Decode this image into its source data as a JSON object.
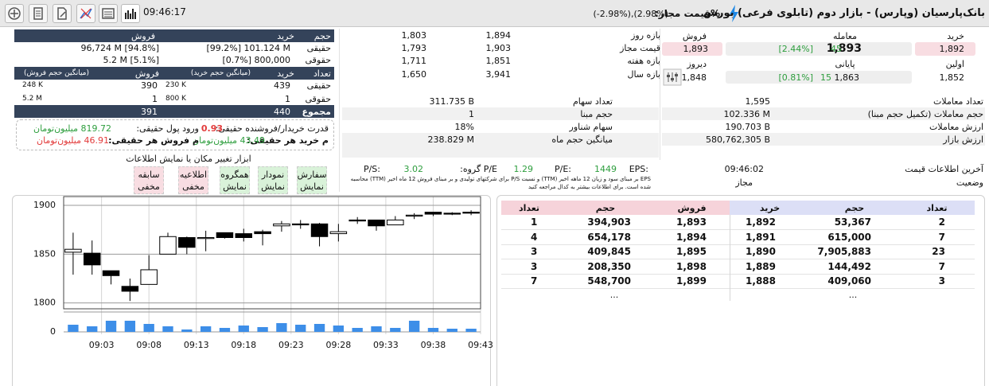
{
  "header": {
    "title": "بانک‌پارسیان (وپارس) - بازار دوم (تابلوی فرعی) بورس",
    "allowed_label": "%قیمت مجاز:",
    "allowed_range": "(-2.98%),(2.98%)",
    "time": "09:46:17"
  },
  "quote": {
    "buy_label": "خرید",
    "trade_label": "معامله",
    "sell_label": "فروش",
    "bid": "1,892",
    "last": "1,893",
    "last_change": "45",
    "last_percent": "[2.44%]",
    "ask": "1,893",
    "first_label": "اولین",
    "first": "1,852",
    "close_label": "پایانی",
    "close": "1,863",
    "close_change": "15",
    "close_percent": "[0.81%]",
    "prev_label": "دیروز",
    "prev": "1,848"
  },
  "ranges": [
    {
      "label": "بازه روز",
      "high": "1,894",
      "low": "1,803"
    },
    {
      "label": "قیمت مجاز",
      "high": "1,903",
      "low": "1,793"
    },
    {
      "label": "بازه هفته",
      "high": "1,851",
      "low": "1,711"
    },
    {
      "label": "بازه سال",
      "high": "3,941",
      "low": "1,650"
    }
  ],
  "client_types": {
    "volume_headers": [
      "حجم",
      "خرید",
      "فروش"
    ],
    "volume_rows": [
      {
        "label": "حقیقی",
        "buy": "[99.2%] 101.124 M",
        "sell": "96,724 M [94.8%]"
      },
      {
        "label": "حقوقی",
        "buy": "[0.7%] 800,000",
        "sell": "5.2 M [5.1%]"
      }
    ],
    "count_headers": [
      "تعداد",
      "خرید",
      "(میانگین حجم خرید)",
      "فروش",
      "(میانگین حجم فروش)"
    ],
    "count_rows": [
      {
        "label": "حقیقی",
        "buy": "439",
        "buy_avg": "230 K",
        "sell": "390",
        "sell_avg": "248 K"
      },
      {
        "label": "حقوقی",
        "buy": "1",
        "buy_avg": "800 K",
        "sell": "1",
        "sell_avg": "5.2 M"
      }
    ],
    "total": {
      "label": "مجموع",
      "buy": "440",
      "sell": "391"
    }
  },
  "flows": {
    "power_label": "قدرت خریدار/فروشنده حقیقی:",
    "power": "0.93",
    "inflow_label": "ورود پول حقیقی:",
    "inflow": "819.72 میلیون‌تومان",
    "buy_per_label": "م خرید هر حقیقی:",
    "buy_per": "43.49 میلیون‌تومان",
    "sell_per_label": "م فروش هر حقیقی:",
    "sell_per": "46.91 میلیون‌تومان"
  },
  "tools": {
    "title": "ابزار تغییر مکان یا نمایش اطلاعات",
    "buttons": [
      {
        "label": "سفارش",
        "state": "نمایش",
        "color": "#d9f2d9"
      },
      {
        "label": "نمودار",
        "state": "نمایش",
        "color": "#d9f2d9"
      },
      {
        "label": "همگروه",
        "state": "نمایش",
        "color": "#d9f2d9"
      },
      {
        "label": "اطلاعیه",
        "state": "مخفی",
        "color": "#f8dde2"
      },
      {
        "label": "سابقه",
        "state": "مخفی",
        "color": "#f8dde2"
      }
    ]
  },
  "trade_stats": [
    {
      "label": "تعداد معاملات",
      "value": "1,595"
    },
    {
      "label": "حجم معاملات (تکمیل حجم مبنا)",
      "value": "102.336 M"
    },
    {
      "label": "ارزش معاملات",
      "value": "190.703 B"
    },
    {
      "label": "ارزش بازار",
      "value": "580,762,305 B"
    }
  ],
  "share_stats": [
    {
      "label": "تعداد سهام",
      "value": "311.735 B"
    },
    {
      "label": "حجم مبنا",
      "value": "1"
    },
    {
      "label": "سهام شناور",
      "value": "18%"
    },
    {
      "label": "میانگین حجم ماه",
      "value": "238.829 M"
    }
  ],
  "ratios": {
    "eps_label": "EPS:",
    "eps": "1449",
    "pe_label": "P/E:",
    "pe": "1.29",
    "group_pe_label": "P/E گروه:",
    "group_pe": "3.02",
    "ps_label": "P/S:",
    "note": "EPS بر مبنای سود و زیان 12 ماهه اخیر (TTM) و نسبت P/S برای شرکتهای تولیدی و بر مبنای فروش 12 ماه اخیر (TTM) محاسبه شده است. برای اطلاعات بیشتر به کدال مراجعه کنید"
  },
  "status": {
    "last_update_label": "آخرین اطلاعات قیمت",
    "last_update": "09:46:02",
    "state_label": "وضعیت",
    "state": "مجاز"
  },
  "candle_chart": {
    "type": "candlestick",
    "x": [
      "09:00",
      "09:02",
      "09:04",
      "09:06",
      "09:08",
      "09:10",
      "09:12",
      "09:14",
      "09:16",
      "09:18",
      "09:20",
      "09:22",
      "09:24",
      "09:26",
      "09:28",
      "09:30",
      "09:32",
      "09:34",
      "09:36",
      "09:38",
      "09:40",
      "09:42"
    ],
    "open": [
      1852,
      1851,
      1833,
      1817,
      1819,
      1850,
      1867,
      1866,
      1872,
      1871,
      1873,
      1879,
      1881,
      1881,
      1871,
      1885,
      1885,
      1880,
      1889,
      1893,
      1892,
      1893
    ],
    "high": [
      1872,
      1864,
      1833,
      1825,
      1849,
      1872,
      1868,
      1874,
      1872,
      1876,
      1875,
      1884,
      1885,
      1882,
      1881,
      1888,
      1885,
      1889,
      1892,
      1893,
      1893,
      1895
    ],
    "low": [
      1829,
      1829,
      1819,
      1802,
      1819,
      1850,
      1850,
      1853,
      1866,
      1863,
      1859,
      1873,
      1876,
      1858,
      1863,
      1881,
      1874,
      1880,
      1886,
      1889,
      1890,
      1890
    ],
    "close": [
      1855,
      1839,
      1828,
      1812,
      1834,
      1868,
      1857,
      1867,
      1867,
      1867,
      1871,
      1881,
      1880,
      1868,
      1873,
      1884,
      1879,
      1885,
      1890,
      1891,
      1891,
      1892
    ],
    "volume": [
      9,
      7,
      14,
      14,
      10,
      7,
      3,
      7,
      5,
      8,
      6,
      11,
      9,
      10,
      8,
      5,
      7,
      5,
      14,
      5,
      4,
      4
    ],
    "xlim": [
      "08:59",
      "09:43"
    ],
    "xticks": [
      "09:03",
      "09:08",
      "09:13",
      "09:18",
      "09:23",
      "09:28",
      "09:33",
      "09:38",
      "09:43"
    ],
    "ylim": [
      1794,
      1909
    ],
    "yticks": [
      1800,
      1850,
      1900
    ],
    "volume_ylim": [
      0,
      20
    ],
    "volume_yticks": [
      0
    ],
    "up_color": "#ffffff",
    "down_color": "#000000",
    "volume_color": "#3d8ee8",
    "grid": true
  },
  "order_book": {
    "headers": [
      "تعداد",
      "حجم",
      "فروش",
      "خرید",
      "حجم",
      "تعداد"
    ],
    "rows": [
      [
        "1",
        "394,903",
        "1,893",
        "1,892",
        "53,367",
        "2"
      ],
      [
        "4",
        "654,178",
        "1,894",
        "1,891",
        "615,000",
        "7"
      ],
      [
        "3",
        "409,845",
        "1,895",
        "1,890",
        "7,905,883",
        "23"
      ],
      [
        "3",
        "208,350",
        "1,898",
        "1,889",
        "144,492",
        "7"
      ],
      [
        "7",
        "548,700",
        "1,899",
        "1,888",
        "409,060",
        "3"
      ]
    ],
    "more": [
      "...",
      "..."
    ]
  }
}
